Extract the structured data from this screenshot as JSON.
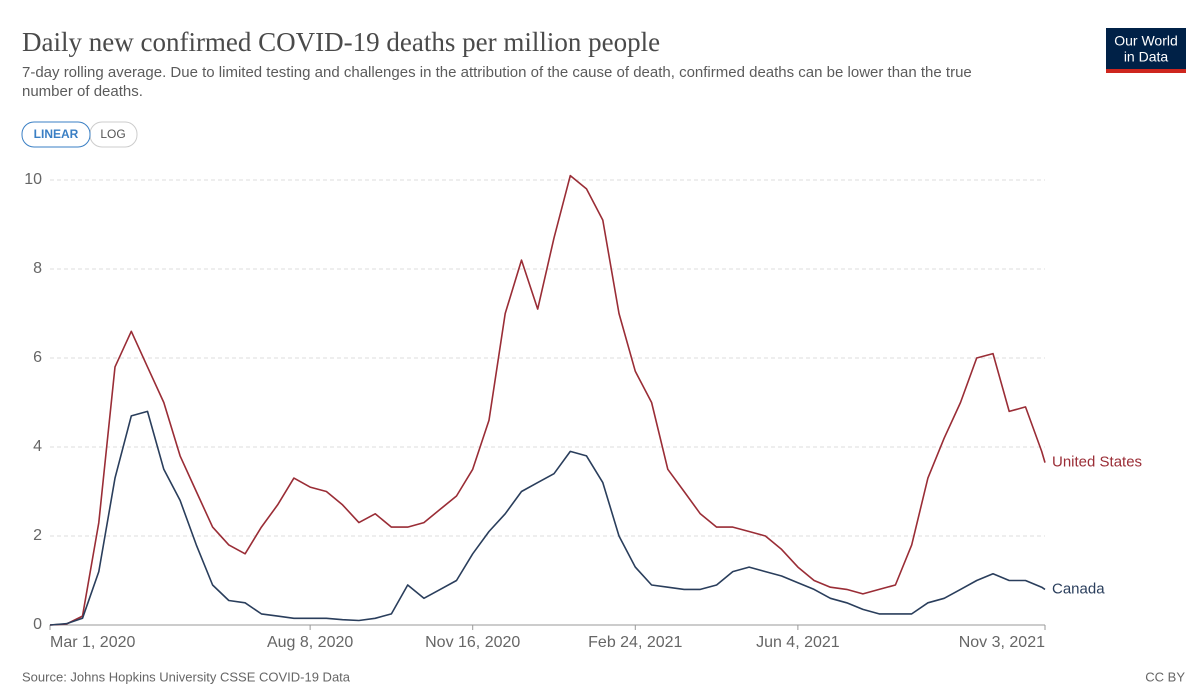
{
  "chart_data": {
    "type": "line",
    "title": "Daily new confirmed COVID-19 deaths per million people",
    "subtitle": [
      "7-day rolling average. Due to limited testing and challenges in the attribution of the cause of death, confirmed deaths can be lower than the true",
      "number of deaths."
    ],
    "scale_buttons": [
      "LINEAR",
      "LOG"
    ],
    "logo": [
      "Our World",
      "in Data"
    ],
    "source": "Source: Johns Hopkins University CSSE COVID-19 Data",
    "license": "CC BY",
    "grid": true,
    "xlim": [
      "2020-03-01",
      "2021-11-03"
    ],
    "xticks": [
      {
        "value": "2020-03-01",
        "label": "Mar 1, 2020"
      },
      {
        "value": "2020-08-08",
        "label": "Aug 8, 2020"
      },
      {
        "value": "2020-11-16",
        "label": "Nov 16, 2020"
      },
      {
        "value": "2021-02-24",
        "label": "Feb 24, 2021"
      },
      {
        "value": "2021-06-04",
        "label": "Jun 4, 2021"
      },
      {
        "value": "2021-11-03",
        "label": "Nov 3, 2021"
      }
    ],
    "ylim": [
      0,
      10
    ],
    "yticks": [
      0,
      2,
      4,
      6,
      8,
      10
    ],
    "x": [
      "2020-03-01",
      "2020-03-11",
      "2020-03-21",
      "2020-03-31",
      "2020-04-10",
      "2020-04-20",
      "2020-04-30",
      "2020-05-10",
      "2020-05-20",
      "2020-05-30",
      "2020-06-09",
      "2020-06-19",
      "2020-06-29",
      "2020-07-09",
      "2020-07-19",
      "2020-07-29",
      "2020-08-08",
      "2020-08-18",
      "2020-08-28",
      "2020-09-07",
      "2020-09-17",
      "2020-09-27",
      "2020-10-07",
      "2020-10-17",
      "2020-10-27",
      "2020-11-06",
      "2020-11-16",
      "2020-11-26",
      "2020-12-06",
      "2020-12-16",
      "2020-12-26",
      "2021-01-05",
      "2021-01-15",
      "2021-01-25",
      "2021-02-04",
      "2021-02-14",
      "2021-02-24",
      "2021-03-06",
      "2021-03-16",
      "2021-03-26",
      "2021-04-05",
      "2021-04-15",
      "2021-04-25",
      "2021-05-05",
      "2021-05-15",
      "2021-05-25",
      "2021-06-04",
      "2021-06-14",
      "2021-06-24",
      "2021-07-04",
      "2021-07-14",
      "2021-07-24",
      "2021-08-03",
      "2021-08-13",
      "2021-08-23",
      "2021-09-02",
      "2021-09-12",
      "2021-09-22",
      "2021-10-02",
      "2021-10-12",
      "2021-10-22",
      "2021-11-01",
      "2021-11-03"
    ],
    "series": [
      {
        "name": "United States",
        "color": "#9a2d36",
        "values": [
          0,
          0.02,
          0.2,
          2.3,
          5.8,
          6.6,
          5.8,
          5.0,
          3.8,
          3.0,
          2.2,
          1.8,
          1.6,
          2.2,
          2.7,
          3.3,
          3.1,
          3.0,
          2.7,
          2.3,
          2.5,
          2.2,
          2.2,
          2.3,
          2.6,
          2.9,
          3.5,
          4.6,
          7.0,
          8.2,
          7.1,
          8.7,
          10.1,
          9.8,
          9.1,
          7.0,
          5.7,
          5.0,
          3.5,
          3.0,
          2.5,
          2.2,
          2.2,
          2.1,
          2.0,
          1.7,
          1.3,
          1.0,
          0.85,
          0.8,
          0.7,
          0.8,
          0.9,
          1.8,
          3.3,
          4.2,
          5.0,
          6.0,
          6.1,
          4.8,
          4.9,
          3.9,
          3.65
        ]
      },
      {
        "name": "Canada",
        "color": "#2a3e5c",
        "values": [
          0,
          0.03,
          0.15,
          1.2,
          3.3,
          4.7,
          4.8,
          3.5,
          2.8,
          1.8,
          0.9,
          0.55,
          0.5,
          0.25,
          0.2,
          0.15,
          0.15,
          0.15,
          0.12,
          0.1,
          0.15,
          0.25,
          0.9,
          0.6,
          0.8,
          1.0,
          1.6,
          2.1,
          2.5,
          3.0,
          3.2,
          3.4,
          3.9,
          3.8,
          3.2,
          2.0,
          1.3,
          0.9,
          0.85,
          0.8,
          0.8,
          0.9,
          1.2,
          1.3,
          1.2,
          1.1,
          0.95,
          0.8,
          0.6,
          0.5,
          0.35,
          0.25,
          0.25,
          0.25,
          0.5,
          0.6,
          0.8,
          1.0,
          1.15,
          1.0,
          1.0,
          0.85,
          0.8
        ]
      }
    ]
  }
}
